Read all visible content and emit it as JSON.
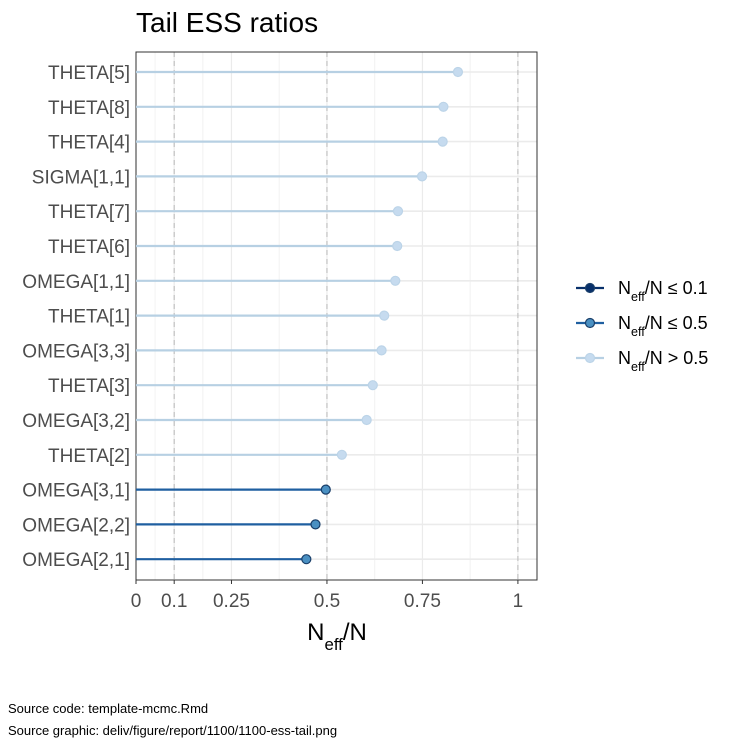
{
  "chart_data": {
    "type": "lollipop",
    "title": "Tail ESS ratios",
    "xlabel": {
      "main": "N",
      "sub": "eff",
      "tail": "/N"
    },
    "xlim": [
      0,
      1.05
    ],
    "x_ticks": [
      0,
      0.1,
      0.25,
      0.5,
      0.75,
      1
    ],
    "x_tick_labels": [
      "0",
      "0.1",
      "0.25",
      "0.5",
      "0.75",
      "1"
    ],
    "reference_lines": [
      0.1,
      0.5,
      1
    ],
    "grid": true,
    "legend_position": "right",
    "categories": [
      "THETA[5]",
      "THETA[8]",
      "THETA[4]",
      "SIGMA[1,1]",
      "THETA[7]",
      "THETA[6]",
      "OMEGA[1,1]",
      "THETA[1]",
      "OMEGA[3,3]",
      "THETA[3]",
      "OMEGA[3,2]",
      "THETA[2]",
      "OMEGA[3,1]",
      "OMEGA[2,2]",
      "OMEGA[2,1]"
    ],
    "values": [
      0.843,
      0.805,
      0.803,
      0.749,
      0.686,
      0.684,
      0.679,
      0.65,
      0.643,
      0.62,
      0.604,
      0.539,
      0.497,
      0.47,
      0.446
    ],
    "groups": [
      {
        "key": "low",
        "max": 0.1,
        "color": "#08306b",
        "fill": "#08306b",
        "label": {
          "main": "N",
          "sub": "eff",
          "tail": "/N ≤ 0.1"
        }
      },
      {
        "key": "mid",
        "max": 0.5,
        "color": "#1f5fa0",
        "fill": "#4a90c2",
        "label": {
          "main": "N",
          "sub": "eff",
          "tail": "/N ≤ 0.5"
        }
      },
      {
        "key": "high",
        "max": 999,
        "color": "#b7d0e3",
        "fill": "#c6dbef",
        "label": {
          "main": "N",
          "sub": "eff",
          "tail": "/N > 0.5"
        }
      }
    ]
  },
  "footer": {
    "source_code": "Source code: template-mcmc.Rmd",
    "source_graphic": "Source graphic: deliv/figure/report/1100/1100-ess-tail.png"
  }
}
